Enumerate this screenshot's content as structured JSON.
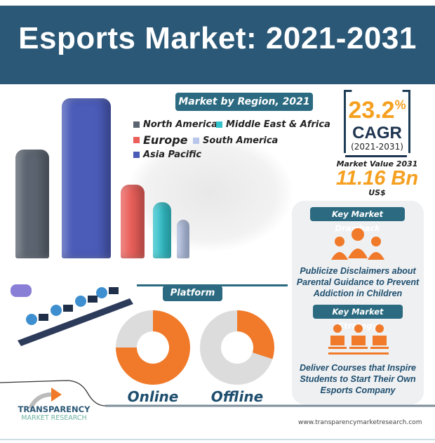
{
  "title": "Esports Market: 2021-2031",
  "region": {
    "heading": "Market by Region, 2021",
    "legend": [
      {
        "label": "North America",
        "color": "#5b6470"
      },
      {
        "label": "Middle East & Africa",
        "color": "#33c3cc"
      },
      {
        "label": "Europe",
        "color": "#ea5f5a"
      },
      {
        "label": "South America",
        "color": "#b7c6ea"
      },
      {
        "label": "Asia Pacific",
        "color": "#4a5bb8"
      }
    ],
    "bars": [
      {
        "region": "North America",
        "relative_value": 68,
        "color": "#5b6470"
      },
      {
        "region": "Asia Pacific",
        "relative_value": 100,
        "color": "#4a5bb8"
      },
      {
        "region": "Europe",
        "relative_value": 46,
        "color": "#ea5f5a"
      },
      {
        "region": "Middle East & Africa",
        "relative_value": 35,
        "color": "#33c3cc"
      },
      {
        "region": "South America",
        "relative_value": 24,
        "color": "#b7c6ea"
      }
    ]
  },
  "stats": {
    "cagr": "23.2",
    "pct": "%",
    "cagr_label": "CAGR",
    "period": "(2021-2031)",
    "value_label": "Market Value 2031",
    "value": "11.16 Bn",
    "currency": "US$"
  },
  "drawback": {
    "heading": "Key Market Drawback",
    "text": "Publicize Disclaimers about Parental Guidance to Prevent Addiction in Children"
  },
  "strategy": {
    "heading": "Key Market Strategy",
    "text": "Deliver Courses that Inspire Students to Start Their Own Esports Company"
  },
  "platform": {
    "heading": "Platform",
    "items": [
      {
        "label": "Online",
        "share": 0.75
      },
      {
        "label": "Offline",
        "share": 0.3
      }
    ]
  },
  "logo": {
    "line1": "TRANSPARENCY",
    "line2": "MARKET RESEARCH"
  },
  "website": "www.transparencymarketresearch.com",
  "colors": {
    "brand": "#2b5876",
    "accent": "#f07a2a",
    "stat": "#f5a020"
  }
}
